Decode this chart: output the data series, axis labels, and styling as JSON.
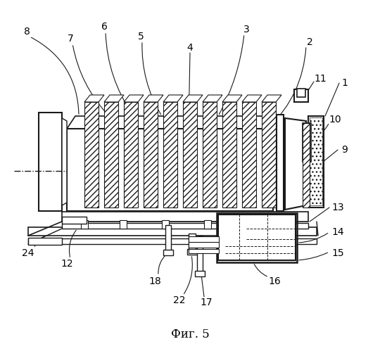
{
  "title": "Фиг. 5",
  "background_color": "#ffffff",
  "line_color": "#1a1a1a",
  "label_fontsize": 10,
  "title_fontsize": 12
}
